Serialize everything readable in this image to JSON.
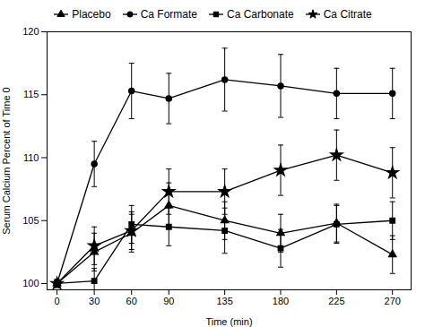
{
  "chart_data": {
    "type": "line",
    "xlabel": "Time (min)",
    "ylabel": "Serum Calcium Percent of Time 0",
    "x": [
      0,
      30,
      60,
      90,
      135,
      180,
      225,
      270
    ],
    "xlim": [
      -8,
      285
    ],
    "xticks": [
      0,
      30,
      60,
      90,
      135,
      180,
      225,
      270
    ],
    "ylim": [
      99.5,
      120
    ],
    "yticks": [
      100,
      105,
      110,
      115,
      120
    ],
    "legend": "top",
    "series": [
      {
        "name": "Placebo",
        "color": "#000000",
        "marker": "triangle",
        "values": [
          100,
          102.5,
          104.0,
          106.2,
          105.0,
          104.0,
          104.8,
          102.3
        ],
        "errors": [
          0.3,
          1.5,
          1.5,
          1.8,
          1.5,
          1.5,
          1.5,
          1.5
        ]
      },
      {
        "name": "Ca Formate",
        "color": "#000000",
        "marker": "circle",
        "values": [
          100,
          109.5,
          115.3,
          114.7,
          116.2,
          115.7,
          115.1,
          115.1
        ],
        "errors": [
          0.3,
          1.8,
          2.2,
          2.0,
          2.5,
          2.5,
          2.0,
          2.0
        ]
      },
      {
        "name": "Ca Carbonate",
        "color": "#000000",
        "marker": "square",
        "values": [
          100,
          100.2,
          104.7,
          104.5,
          104.2,
          102.8,
          104.7,
          105.0
        ],
        "errors": [
          0.3,
          1.0,
          1.5,
          1.5,
          1.8,
          1.5,
          1.5,
          1.5
        ]
      },
      {
        "name": "Ca Citrate",
        "color": "#000000",
        "marker": "star",
        "values": [
          100,
          103.0,
          104.2,
          107.3,
          107.3,
          109.0,
          110.2,
          108.8
        ],
        "errors": [
          0.3,
          1.5,
          1.5,
          1.8,
          1.8,
          2.0,
          2.0,
          2.0
        ]
      }
    ]
  }
}
